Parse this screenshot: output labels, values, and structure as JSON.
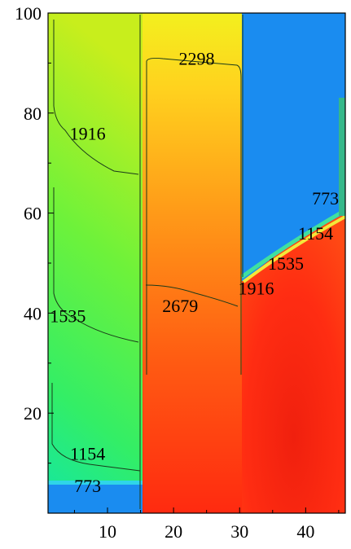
{
  "chart_data": {
    "type": "heatmap",
    "title": "",
    "xlabel": "",
    "ylabel": "",
    "xlim": [
      1,
      46
    ],
    "ylim": [
      0,
      100
    ],
    "x_ticks": [
      10,
      20,
      30,
      40
    ],
    "y_ticks": [
      20,
      40,
      60,
      80,
      100
    ],
    "colorscale": "jet",
    "grid": false,
    "legend": "none",
    "regions": [
      {
        "name": "column-left",
        "x_range": [
          1,
          15.5
        ],
        "y_range": [
          6,
          100
        ],
        "value_low": 900,
        "value_high": 2100
      },
      {
        "name": "column-middle",
        "x_range": [
          15.5,
          30.5
        ],
        "y_range": [
          0,
          100
        ],
        "value_low": 2200,
        "value_high": 3000
      },
      {
        "name": "column-right-upper",
        "x_range": [
          30.5,
          46
        ],
        "y_range": [
          48,
          100
        ],
        "value": 500
      },
      {
        "name": "column-right-lower",
        "x_range": [
          30.5,
          46
        ],
        "y_range": [
          0,
          48
        ],
        "value_low": 2800,
        "value_high": 3100
      },
      {
        "name": "base-left",
        "x_range": [
          1,
          15.5
        ],
        "y_range": [
          0,
          6
        ],
        "value": 500
      }
    ],
    "contour_labels": [
      {
        "text": "2298",
        "x": 23.5,
        "y": 91
      },
      {
        "text": "1916",
        "x": 7,
        "y": 76
      },
      {
        "text": "773",
        "x": 43,
        "y": 63
      },
      {
        "text": "1154",
        "x": 41.5,
        "y": 56
      },
      {
        "text": "1535",
        "x": 37,
        "y": 50
      },
      {
        "text": "1916",
        "x": 32.5,
        "y": 45
      },
      {
        "text": "1535",
        "x": 4,
        "y": 39.5
      },
      {
        "text": "2679",
        "x": 21,
        "y": 41.5
      },
      {
        "text": "1154",
        "x": 7,
        "y": 12
      },
      {
        "text": "773",
        "x": 7,
        "y": 5.5
      }
    ]
  }
}
